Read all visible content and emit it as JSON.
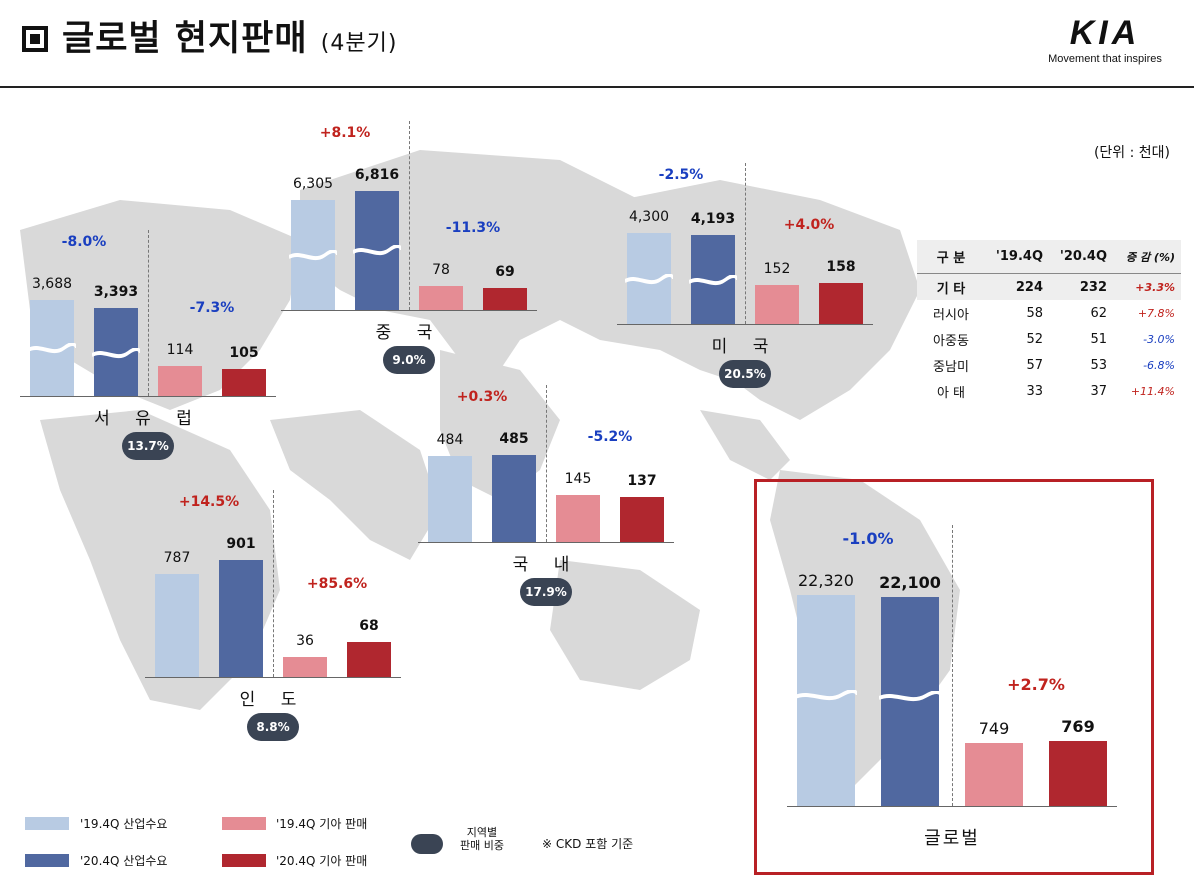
{
  "header": {
    "title": "글로벌 현지판매",
    "subtitle": "(4분기)",
    "logo": "KIA",
    "tagline": "Movement that inspires"
  },
  "unit": "(단위 : 천대)",
  "colors": {
    "industry_2019": "#b8cbe3",
    "industry_2020": "#5068a0",
    "kia_2019": "#e58c94",
    "kia_2020": "#b0272f",
    "share_bubble": "#3a4454",
    "highlight_box": "#b82025"
  },
  "legend": {
    "industry_2019": "'19.4Q 산업수요",
    "industry_2020": "'20.4Q 산업수요",
    "kia_2019": "'19.4Q 기아 판매",
    "kia_2020": "'20.4Q 기아 판매",
    "share": "지역별\n판매 비중",
    "note": "※ CKD 포함 기준"
  },
  "chart_data": {
    "type": "bar",
    "categories": [
      "'19.4Q 산업수요",
      "'20.4Q 산업수요",
      "'19.4Q 기아 판매",
      "'20.4Q 기아 판매"
    ],
    "regions": [
      {
        "name": "서 유 럽",
        "share": "13.7%",
        "industry": [
          3688,
          3393
        ],
        "industry_labels": [
          "3,688",
          "3,393"
        ],
        "industry_change": "-8.0%",
        "kia": [
          114,
          105
        ],
        "kia_labels": [
          "114",
          "105"
        ],
        "kia_change": "-7.3%",
        "broken_axis": true
      },
      {
        "name": "중 국",
        "share": "9.0%",
        "industry": [
          6305,
          6816
        ],
        "industry_labels": [
          "6,305",
          "6,816"
        ],
        "industry_change": "+8.1%",
        "kia": [
          78,
          69
        ],
        "kia_labels": [
          "78",
          "69"
        ],
        "kia_change": "-11.3%",
        "broken_axis": true
      },
      {
        "name": "미 국",
        "share": "20.5%",
        "industry": [
          4300,
          4193
        ],
        "industry_labels": [
          "4,300",
          "4,193"
        ],
        "industry_change": "-2.5%",
        "kia": [
          152,
          158
        ],
        "kia_labels": [
          "152",
          "158"
        ],
        "kia_change": "+4.0%",
        "broken_axis": true
      },
      {
        "name": "국 내",
        "share": "17.9%",
        "industry": [
          484,
          485
        ],
        "industry_labels": [
          "484",
          "485"
        ],
        "industry_change": "+0.3%",
        "kia": [
          145,
          137
        ],
        "kia_labels": [
          "145",
          "137"
        ],
        "kia_change": "-5.2%",
        "broken_axis": false
      },
      {
        "name": "인 도",
        "share": "8.8%",
        "industry": [
          787,
          901
        ],
        "industry_labels": [
          "787",
          "901"
        ],
        "industry_change": "+14.5%",
        "kia": [
          36,
          68
        ],
        "kia_labels": [
          "36",
          "68"
        ],
        "kia_change": "+85.6%",
        "broken_axis": false
      },
      {
        "name": "글로벌",
        "share": "",
        "industry": [
          22320,
          22100
        ],
        "industry_labels": [
          "22,320",
          "22,100"
        ],
        "industry_change": "-1.0%",
        "kia": [
          749,
          769
        ],
        "kia_labels": [
          "749",
          "769"
        ],
        "kia_change": "+2.7%",
        "broken_axis": true
      }
    ],
    "others_table": {
      "headers": [
        "구  분",
        "'19.4Q",
        "'20.4Q",
        "증 감 (%)"
      ],
      "rows": [
        {
          "label": "기  타",
          "v2019": "224",
          "v2020": "232",
          "change": "+3.3%",
          "total": true
        },
        {
          "label": "러시아",
          "v2019": "58",
          "v2020": "62",
          "change": "+7.8%"
        },
        {
          "label": "아중동",
          "v2019": "52",
          "v2020": "51",
          "change": "-3.0%"
        },
        {
          "label": "중남미",
          "v2019": "57",
          "v2020": "53",
          "change": "-6.8%"
        },
        {
          "label": "아  태",
          "v2019": "33",
          "v2020": "37",
          "change": "+11.4%"
        }
      ]
    }
  }
}
